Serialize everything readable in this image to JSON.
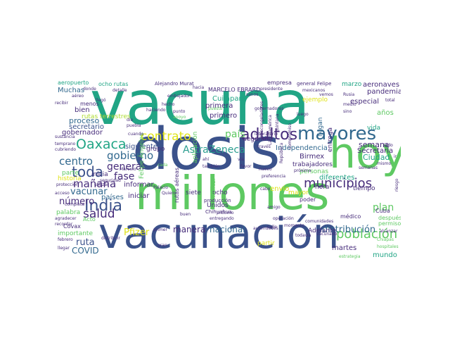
{
  "palette": {
    "teal": "#21a585",
    "navy": "#3b528b",
    "green": "#5ec962",
    "purple": "#472d7b",
    "slate": "#31688e",
    "lime": "#addc30",
    "yellow": "#dfe318",
    "cyan": "#2a9d8f",
    "mint": "#7ad151",
    "deep": "#440154"
  },
  "words": [
    {
      "text": "vacuna",
      "color": "#21a585"
    },
    {
      "text": "dosis",
      "color": "#3b528b"
    },
    {
      "text": "vacunación",
      "color": "#3b528b"
    },
    {
      "text": "millones",
      "color": "#5ec962"
    },
    {
      "text": "hoy",
      "color": "#5ec962"
    },
    {
      "text": "mayores",
      "color": "#31688e"
    },
    {
      "text": "adultos",
      "color": "#472d7b"
    },
    {
      "text": "India",
      "color": "#3b528b"
    },
    {
      "text": "población",
      "color": "#5ec962"
    },
    {
      "text": "municipios",
      "color": "#472d7b"
    },
    {
      "text": "Oaxaca",
      "color": "#21a585"
    },
    {
      "text": "toda",
      "color": "#3b528b"
    },
    {
      "text": "salud",
      "color": "#472d7b"
    },
    {
      "text": "contrato",
      "color": "#dfe318"
    },
    {
      "text": "AstraZeneca",
      "color": "#2a9d8f"
    },
    {
      "text": "gobierno",
      "color": "#31688e"
    },
    {
      "text": "mañana",
      "color": "#472d7b"
    },
    {
      "text": "centro",
      "color": "#31688e"
    },
    {
      "text": "país",
      "color": "#5ec962"
    },
    {
      "text": "plan",
      "color": "#5ec962"
    },
    {
      "text": "distribución",
      "color": "#31688e"
    },
    {
      "text": "fase",
      "color": "#472d7b"
    },
    {
      "text": "general",
      "color": "#472d7b"
    },
    {
      "text": "vacunar",
      "color": "#31688e"
    },
    {
      "text": "número",
      "color": "#472d7b"
    },
    {
      "text": "ruta",
      "color": "#3b528b"
    },
    {
      "text": "COVID",
      "color": "#31688e"
    },
    {
      "text": "Pfizer",
      "color": "#dfe318"
    },
    {
      "text": "manera",
      "color": "#472d7b"
    },
    {
      "text": "nacional",
      "color": "#31688e"
    },
    {
      "text": "semana",
      "color": "#472d7b"
    },
    {
      "text": "Ciudad",
      "color": "#21a585"
    },
    {
      "text": "Independencia",
      "color": "#31688e"
    },
    {
      "text": "Secretaría",
      "color": "#472d7b"
    },
    {
      "text": "proceso",
      "color": "#31688e"
    },
    {
      "text": "bien",
      "color": "#472d7b"
    },
    {
      "text": "Muchas",
      "color": "#31688e"
    },
    {
      "text": "aeropuerto",
      "color": "#21a585"
    },
    {
      "text": "ocho rutas",
      "color": "#21a585"
    },
    {
      "text": "menos",
      "color": "#472d7b"
    },
    {
      "text": "secretario",
      "color": "#3b528b"
    },
    {
      "text": "gobernador",
      "color": "#472d7b"
    },
    {
      "text": "rutas terrestres",
      "color": "#addc30"
    },
    {
      "text": "siguiente",
      "color": "#3b528b"
    },
    {
      "text": "Felipe Ángeles",
      "color": "#5ec962"
    },
    {
      "text": "primera",
      "color": "#472d7b"
    },
    {
      "text": "primero",
      "color": "#472d7b"
    },
    {
      "text": "segunda",
      "color": "#472d7b"
    },
    {
      "text": "Cuilápam",
      "color": "#21a585"
    },
    {
      "text": "aplicación",
      "color": "#5ec962"
    },
    {
      "text": "MARCELO EBRARD",
      "color": "#472d7b"
    },
    {
      "text": "empresa",
      "color": "#472d7b"
    },
    {
      "text": "ejemplo",
      "color": "#dfe318"
    },
    {
      "text": "entrega",
      "color": "#472d7b"
    },
    {
      "text": "llegan",
      "color": "#31688e"
    },
    {
      "text": "especial",
      "color": "#472d7b"
    },
    {
      "text": "años",
      "color": "#5ec962"
    },
    {
      "text": "vida",
      "color": "#21a585"
    },
    {
      "text": "pandemia",
      "color": "#472d7b"
    },
    {
      "text": "aeronaves",
      "color": "#472d7b"
    },
    {
      "text": "marzo",
      "color": "#21a585"
    },
    {
      "text": "Birmex",
      "color": "#472d7b"
    },
    {
      "text": "trabajadores",
      "color": "#472d7b"
    },
    {
      "text": "personas",
      "color": "#5ec962"
    },
    {
      "text": "hora",
      "color": "#472d7b"
    },
    {
      "text": "diferentes",
      "color": "#21a585"
    },
    {
      "text": "tiempo",
      "color": "#472d7b"
    },
    {
      "text": "mundo",
      "color": "#21a585"
    },
    {
      "text": "martes",
      "color": "#472d7b"
    },
    {
      "text": "después",
      "color": "#5ec962"
    },
    {
      "text": "Cuba",
      "color": "#472d7b"
    },
    {
      "text": "envío",
      "color": "#dfe318"
    },
    {
      "text": "mayor",
      "color": "#dfe318"
    },
    {
      "text": "poder",
      "color": "#472d7b"
    },
    {
      "text": "médico",
      "color": "#472d7b"
    },
    {
      "text": "Adelante",
      "color": "#472d7b"
    },
    {
      "text": "partir",
      "color": "#dfe318"
    },
    {
      "text": "iniciar",
      "color": "#472d7b"
    },
    {
      "text": "informar",
      "color": "#472d7b"
    },
    {
      "text": "inicia",
      "color": "#472d7b"
    },
    {
      "text": "grupo",
      "color": "#472d7b"
    },
    {
      "text": "países",
      "color": "#31688e"
    },
    {
      "text": "Unidos",
      "color": "#472d7b"
    },
    {
      "text": "siete",
      "color": "#472d7b"
    },
    {
      "text": "ocho",
      "color": "#472d7b"
    },
    {
      "text": "rutas aéreas",
      "color": "#472d7b"
    },
    {
      "text": "Militar",
      "color": "#5ec962"
    },
    {
      "text": "historia",
      "color": "#dfe318"
    },
    {
      "text": "parte",
      "color": "#5ec962"
    },
    {
      "text": "palabra",
      "color": "#5ec962"
    },
    {
      "text": "importante",
      "color": "#5ec962"
    },
    {
      "text": "Covax",
      "color": "#472d7b"
    },
    {
      "text": "Acto",
      "color": "#5ec962"
    },
    {
      "text": "permiso",
      "color": "#5ec962"
    },
    {
      "text": "producción",
      "color": "#472d7b"
    },
    {
      "text": "Chihuahua",
      "color": "#472d7b"
    },
    {
      "text": "Alejandro Murat",
      "color": "#472d7b"
    },
    {
      "text": "general Felipe",
      "color": "#472d7b"
    },
    {
      "text": "comunidades",
      "color": "#472d7b"
    },
    {
      "text": "laboratorio",
      "color": "#472d7b"
    },
    {
      "text": "autoridades",
      "color": "#472d7b"
    },
    {
      "text": "momento",
      "color": "#472d7b"
    },
    {
      "text": "hospitales",
      "color": "#5ec962"
    },
    {
      "text": "estrategia",
      "color": "#5ec962"
    },
    {
      "text": "febrero",
      "color": "#472d7b"
    },
    {
      "text": "llegar",
      "color": "#472d7b"
    },
    {
      "text": "protección",
      "color": "#472d7b"
    },
    {
      "text": "acceso",
      "color": "#472d7b"
    },
    {
      "text": "agradecer",
      "color": "#472d7b"
    },
    {
      "text": "recordar",
      "color": "#472d7b"
    },
    {
      "text": "Palacio",
      "color": "#472d7b"
    },
    {
      "text": "Quiero",
      "color": "#472d7b"
    },
    {
      "text": "favor",
      "color": "#472d7b"
    },
    {
      "text": "cabo",
      "color": "#472d7b"
    },
    {
      "text": "amigo",
      "color": "#472d7b"
    },
    {
      "text": "riesgo",
      "color": "#472d7b"
    },
    {
      "text": "vacunado",
      "color": "#472d7b"
    },
    {
      "text": "próximo",
      "color": "#472d7b"
    },
    {
      "text": "embajador",
      "color": "#472d7b"
    },
    {
      "text": "través",
      "color": "#472d7b"
    },
    {
      "text": "seguridad",
      "color": "#472d7b"
    },
    {
      "text": "distribuir",
      "color": "#472d7b"
    },
    {
      "text": "gran",
      "color": "#472d7b"
    },
    {
      "text": "Chiapas",
      "color": "#5ec962"
    },
    {
      "text": "apoyo",
      "color": "#5ec962"
    },
    {
      "text": "puebla",
      "color": "#472d7b"
    },
    {
      "text": "cuando",
      "color": "#472d7b"
    },
    {
      "text": "haciendo",
      "color": "#472d7b"
    },
    {
      "text": "hacia",
      "color": "#472d7b"
    },
    {
      "text": "vemos",
      "color": "#472d7b"
    },
    {
      "text": "sino",
      "color": "#472d7b"
    },
    {
      "text": "punto",
      "color": "#472d7b"
    },
    {
      "text": "primer",
      "color": "#472d7b"
    },
    {
      "text": "llegó",
      "color": "#472d7b"
    },
    {
      "text": "completa",
      "color": "#472d7b"
    },
    {
      "text": "sustancia",
      "color": "#472d7b"
    },
    {
      "text": "cubriendo",
      "color": "#472d7b"
    },
    {
      "text": "aéreo",
      "color": "#472d7b"
    },
    {
      "text": "donde",
      "color": "#472d7b"
    },
    {
      "text": "recibir",
      "color": "#472d7b"
    },
    {
      "text": "detalle",
      "color": "#472d7b"
    },
    {
      "text": "dio",
      "color": "#472d7b"
    },
    {
      "text": "mexicanos",
      "color": "#472d7b"
    },
    {
      "text": "temprano",
      "color": "#472d7b"
    },
    {
      "text": "utilizar",
      "color": "#472d7b"
    },
    {
      "text": "cada",
      "color": "#5ec962"
    },
    {
      "text": "compromiso",
      "color": "#472d7b"
    },
    {
      "text": "Marcelo",
      "color": "#472d7b"
    },
    {
      "text": "luego",
      "color": "#472d7b"
    },
    {
      "text": "entregando",
      "color": "#472d7b"
    },
    {
      "text": "calle",
      "color": "#472d7b"
    },
    {
      "text": "preferencia",
      "color": "#472d7b"
    },
    {
      "text": "próxima",
      "color": "#472d7b"
    },
    {
      "text": "Rusia",
      "color": "#472d7b"
    },
    {
      "text": "nuevo",
      "color": "#472d7b"
    },
    {
      "text": "sanos",
      "color": "#472d7b"
    },
    {
      "text": "vía",
      "color": "#472d7b"
    },
    {
      "text": "ir",
      "color": "#472d7b"
    },
    {
      "text": "medio",
      "color": "#472d7b"
    },
    {
      "text": "quintana",
      "color": "#472d7b"
    },
    {
      "text": "todavía",
      "color": "#472d7b"
    },
    {
      "text": "alcanzar",
      "color": "#472d7b"
    },
    {
      "text": "buen",
      "color": "#472d7b"
    },
    {
      "text": "ahí",
      "color": "#472d7b"
    },
    {
      "text": "también",
      "color": "#472d7b"
    },
    {
      "text": "puesto",
      "color": "#5ec962"
    },
    {
      "text": "República",
      "color": "#472d7b"
    },
    {
      "text": "presidente",
      "color": "#472d7b"
    },
    {
      "text": "gobernadores",
      "color": "#472d7b"
    },
    {
      "text": "ultracongeladores",
      "color": "#472d7b"
    },
    {
      "text": "Latinoamérica",
      "color": "#472d7b"
    },
    {
      "text": "hecho",
      "color": "#472d7b"
    },
    {
      "text": "semanas",
      "color": "#472d7b"
    },
    {
      "text": "mismo",
      "color": "#472d7b"
    },
    {
      "text": "lado",
      "color": "#472d7b"
    },
    {
      "text": "total",
      "color": "#472d7b"
    },
    {
      "text": "operación",
      "color": "#472d7b"
    }
  ]
}
